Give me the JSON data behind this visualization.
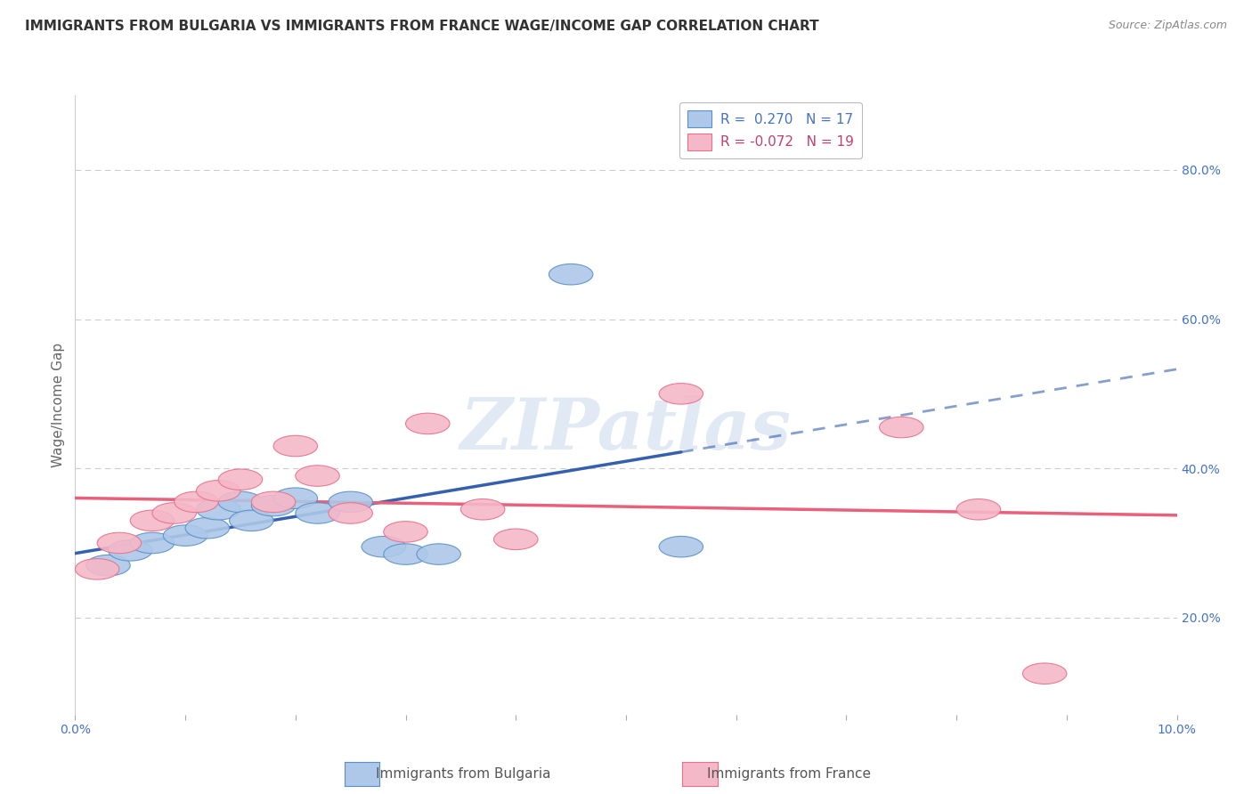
{
  "title": "IMMIGRANTS FROM BULGARIA VS IMMIGRANTS FROM FRANCE WAGE/INCOME GAP CORRELATION CHART",
  "source": "Source: ZipAtlas.com",
  "ylabel": "Wage/Income Gap",
  "ylabel_right_ticks": [
    "80.0%",
    "60.0%",
    "40.0%",
    "20.0%"
  ],
  "ylabel_right_vals": [
    0.8,
    0.6,
    0.4,
    0.2
  ],
  "legend_bulgaria": "R =  0.270   N = 17",
  "legend_france": "R = -0.072   N = 19",
  "bulgaria_color": "#adc8e8",
  "france_color": "#f5b8c8",
  "bulgaria_edge_color": "#5a8fc8",
  "france_edge_color": "#e8708a",
  "bulgaria_line_color": "#3560b0",
  "france_line_color": "#e8607a",
  "bulgaria_points": [
    [
      0.003,
      0.27
    ],
    [
      0.005,
      0.29
    ],
    [
      0.007,
      0.3
    ],
    [
      0.01,
      0.31
    ],
    [
      0.012,
      0.32
    ],
    [
      0.013,
      0.345
    ],
    [
      0.015,
      0.355
    ],
    [
      0.016,
      0.33
    ],
    [
      0.018,
      0.35
    ],
    [
      0.02,
      0.36
    ],
    [
      0.022,
      0.34
    ],
    [
      0.025,
      0.355
    ],
    [
      0.028,
      0.295
    ],
    [
      0.03,
      0.285
    ],
    [
      0.033,
      0.285
    ],
    [
      0.045,
      0.66
    ],
    [
      0.055,
      0.295
    ]
  ],
  "france_points": [
    [
      0.002,
      0.265
    ],
    [
      0.004,
      0.3
    ],
    [
      0.007,
      0.33
    ],
    [
      0.009,
      0.34
    ],
    [
      0.011,
      0.355
    ],
    [
      0.013,
      0.37
    ],
    [
      0.015,
      0.385
    ],
    [
      0.018,
      0.355
    ],
    [
      0.02,
      0.43
    ],
    [
      0.022,
      0.39
    ],
    [
      0.025,
      0.34
    ],
    [
      0.03,
      0.315
    ],
    [
      0.032,
      0.46
    ],
    [
      0.037,
      0.345
    ],
    [
      0.04,
      0.305
    ],
    [
      0.055,
      0.5
    ],
    [
      0.075,
      0.455
    ],
    [
      0.082,
      0.345
    ],
    [
      0.088,
      0.125
    ]
  ],
  "xlim": [
    0.0,
    0.1
  ],
  "ylim": [
    0.07,
    0.9
  ],
  "watermark_text": "ZIPatlas",
  "background_color": "#ffffff",
  "grid_color": "#cccccc"
}
